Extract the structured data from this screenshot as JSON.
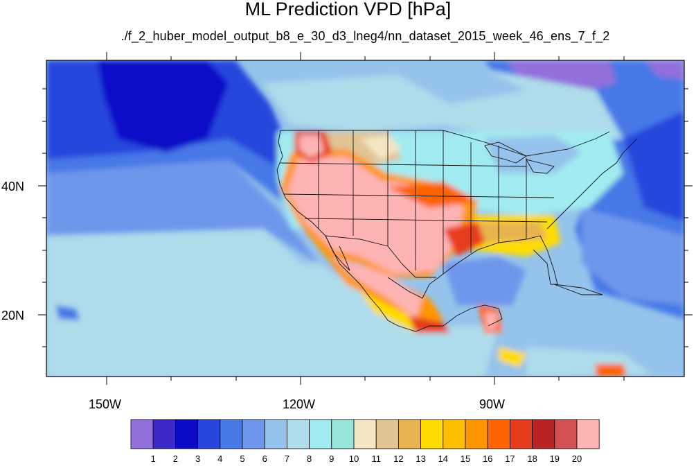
{
  "title": "ML Prediction VPD [hPa]",
  "subtitle": "./f_2_huber_model_output_b8_e_30_d3_lneg4/nn_dataset_2015_week_46_ens_7_f_2",
  "map": {
    "lat_labels": [
      {
        "text": "40N",
        "lat": 40
      },
      {
        "text": "20N",
        "lat": 20
      }
    ],
    "lon_labels": [
      {
        "text": "150W",
        "lon": -150
      },
      {
        "text": "120W",
        "lon": -120
      },
      {
        "text": "90W",
        "lon": -90
      }
    ]
  },
  "colorbar": {
    "labels": [
      "1",
      "2",
      "3",
      "4",
      "5",
      "6",
      "7",
      "8",
      "9",
      "10",
      "11",
      "12",
      "13",
      "14",
      "15",
      "16",
      "17",
      "18",
      "19",
      "20"
    ],
    "colors": [
      "#9370db",
      "#3c28c8",
      "#0a0ac8",
      "#2846dc",
      "#4678e6",
      "#6e96eb",
      "#96c3eb",
      "#afdceb",
      "#a0ebf0",
      "#96e6dc",
      "#f5e6c3",
      "#e1c394",
      "#e6b450",
      "#ffdc00",
      "#ffbe00",
      "#ff9600",
      "#ff6400",
      "#e63c1e",
      "#b92323",
      "#d25050",
      "#ffb4b4"
    ]
  }
}
